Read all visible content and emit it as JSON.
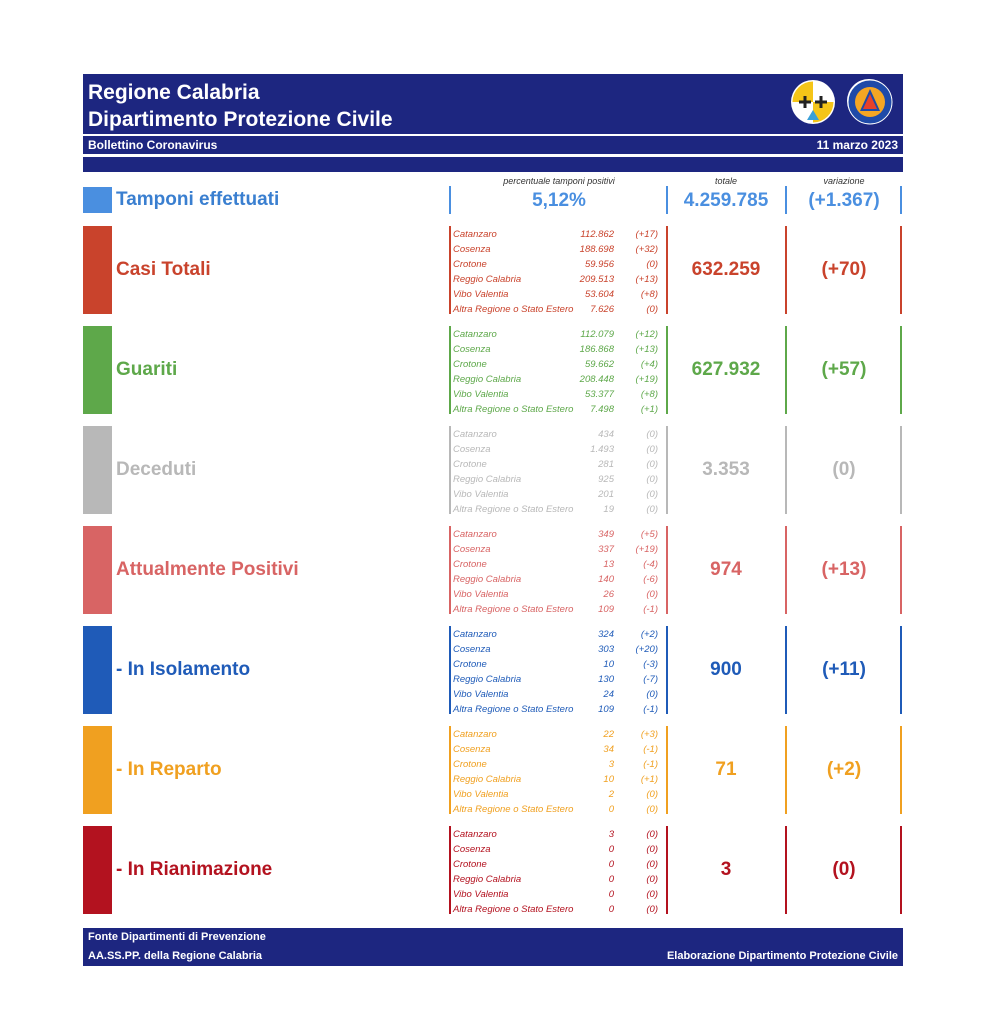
{
  "header": {
    "title_line1": "Regione Calabria",
    "title_line2": "Dipartimento Protezione Civile",
    "bulletin": "Bollettino Coronavirus",
    "date": "11 marzo 2023",
    "colors": {
      "navy": "#1d2680"
    }
  },
  "column_headers": {
    "percent": "percentuale tamponi positivi",
    "total": "totale",
    "variation": "variazione"
  },
  "tamponi": {
    "label": "Tamponi effettuati",
    "percent": "5,12%",
    "total": "4.259.785",
    "variation": "(+1.367)",
    "color": "#4a8fe0"
  },
  "categories": [
    {
      "key": "casi",
      "label": "Casi Totali",
      "color": "#c9432c",
      "total": "632.259",
      "variation": "(+70)",
      "provinces": [
        {
          "name": "Catanzaro",
          "value": "112.862",
          "var": "(+17)"
        },
        {
          "name": "Cosenza",
          "value": "188.698",
          "var": "(+32)"
        },
        {
          "name": "Crotone",
          "value": "59.956",
          "var": "(0)"
        },
        {
          "name": "Reggio Calabria",
          "value": "209.513",
          "var": "(+13)"
        },
        {
          "name": "Vibo Valentia",
          "value": "53.604",
          "var": "(+8)"
        },
        {
          "name": "Altra Regione o Stato Estero",
          "value": "7.626",
          "var": "(0)"
        }
      ]
    },
    {
      "key": "guariti",
      "label": "Guariti",
      "color": "#5ea84a",
      "total": "627.932",
      "variation": "(+57)",
      "provinces": [
        {
          "name": "Catanzaro",
          "value": "112.079",
          "var": "(+12)"
        },
        {
          "name": "Cosenza",
          "value": "186.868",
          "var": "(+13)"
        },
        {
          "name": "Crotone",
          "value": "59.662",
          "var": "(+4)"
        },
        {
          "name": "Reggio Calabria",
          "value": "208.448",
          "var": "(+19)"
        },
        {
          "name": "Vibo Valentia",
          "value": "53.377",
          "var": "(+8)"
        },
        {
          "name": "Altra Regione o Stato Estero",
          "value": "7.498",
          "var": "(+1)"
        }
      ]
    },
    {
      "key": "deceduti",
      "label": "Deceduti",
      "color": "#b8b8b8",
      "total": "3.353",
      "variation": "(0)",
      "provinces": [
        {
          "name": "Catanzaro",
          "value": "434",
          "var": "(0)"
        },
        {
          "name": "Cosenza",
          "value": "1.493",
          "var": "(0)"
        },
        {
          "name": "Crotone",
          "value": "281",
          "var": "(0)"
        },
        {
          "name": "Reggio Calabria",
          "value": "925",
          "var": "(0)"
        },
        {
          "name": "Vibo Valentia",
          "value": "201",
          "var": "(0)"
        },
        {
          "name": "Altra Regione o Stato Estero",
          "value": "19",
          "var": "(0)"
        }
      ]
    },
    {
      "key": "positivi",
      "label": "Attualmente Positivi",
      "color": "#d86464",
      "total": "974",
      "variation": "(+13)",
      "provinces": [
        {
          "name": "Catanzaro",
          "value": "349",
          "var": "(+5)"
        },
        {
          "name": "Cosenza",
          "value": "337",
          "var": "(+19)"
        },
        {
          "name": "Crotone",
          "value": "13",
          "var": "(-4)"
        },
        {
          "name": "Reggio Calabria",
          "value": "140",
          "var": "(-6)"
        },
        {
          "name": "Vibo Valentia",
          "value": "26",
          "var": "(0)"
        },
        {
          "name": "Altra Regione o Stato Estero",
          "value": "109",
          "var": "(-1)"
        }
      ]
    },
    {
      "key": "isolamento",
      "label": " - In Isolamento",
      "color": "#1f5bb8",
      "total": "900",
      "variation": "(+11)",
      "provinces": [
        {
          "name": "Catanzaro",
          "value": "324",
          "var": "(+2)"
        },
        {
          "name": "Cosenza",
          "value": "303",
          "var": "(+20)"
        },
        {
          "name": "Crotone",
          "value": "10",
          "var": "(-3)"
        },
        {
          "name": "Reggio Calabria",
          "value": "130",
          "var": "(-7)"
        },
        {
          "name": "Vibo Valentia",
          "value": "24",
          "var": "(0)"
        },
        {
          "name": "Altra Regione o Stato Estero",
          "value": "109",
          "var": "(-1)"
        }
      ]
    },
    {
      "key": "reparto",
      "label": " - In Reparto",
      "color": "#f0a020",
      "total": "71",
      "variation": "(+2)",
      "provinces": [
        {
          "name": "Catanzaro",
          "value": "22",
          "var": "(+3)"
        },
        {
          "name": "Cosenza",
          "value": "34",
          "var": "(-1)"
        },
        {
          "name": "Crotone",
          "value": "3",
          "var": "(-1)"
        },
        {
          "name": "Reggio Calabria",
          "value": "10",
          "var": "(+1)"
        },
        {
          "name": "Vibo Valentia",
          "value": "2",
          "var": "(0)"
        },
        {
          "name": "Altra Regione o Stato Estero",
          "value": "0",
          "var": "(0)"
        }
      ]
    },
    {
      "key": "rianimazione",
      "label": " - In Rianimazione",
      "color": "#b3121f",
      "total": "3",
      "variation": "(0)",
      "provinces": [
        {
          "name": "Catanzaro",
          "value": "3",
          "var": "(0)"
        },
        {
          "name": "Cosenza",
          "value": "0",
          "var": "(0)"
        },
        {
          "name": "Crotone",
          "value": "0",
          "var": "(0)"
        },
        {
          "name": "Reggio Calabria",
          "value": "0",
          "var": "(0)"
        },
        {
          "name": "Vibo Valentia",
          "value": "0",
          "var": "(0)"
        },
        {
          "name": "Altra Regione o Stato Estero",
          "value": "0",
          "var": "(0)"
        }
      ]
    }
  ],
  "footer": {
    "source_line1": "Fonte Dipartimenti di Prevenzione",
    "source_line2": "AA.SS.PP.  della Regione Calabria",
    "credit": "Elaborazione Dipartimento Protezione Civile"
  }
}
